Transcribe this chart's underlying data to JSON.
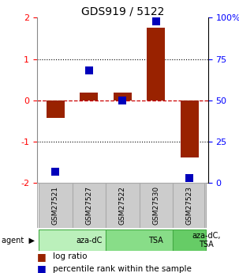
{
  "title": "GDS919 / 5122",
  "samples": [
    "GSM27521",
    "GSM27527",
    "GSM27522",
    "GSM27530",
    "GSM27523"
  ],
  "log_ratios": [
    -0.42,
    0.18,
    0.18,
    1.75,
    -1.38
  ],
  "percentile_ranks": [
    7,
    68,
    50,
    98,
    3
  ],
  "agents": [
    {
      "label": "aza-dC",
      "start": 0,
      "end": 2,
      "color": "#bbf0bb"
    },
    {
      "label": "TSA",
      "start": 2,
      "end": 4,
      "color": "#88dd88"
    },
    {
      "label": "aza-dC,\nTSA",
      "start": 4,
      "end": 5,
      "color": "#66cc66"
    }
  ],
  "ylim_left": [
    -2,
    2
  ],
  "ylim_right": [
    0,
    100
  ],
  "left_ticks": [
    -2,
    -1,
    0,
    1,
    2
  ],
  "right_ticks": [
    0,
    25,
    50,
    75,
    100
  ],
  "right_tick_labels": [
    "0",
    "25",
    "50",
    "75",
    "100%"
  ],
  "left_tick_labels": [
    "-2",
    "-1",
    "0",
    "1",
    "2"
  ],
  "bar_color": "#992200",
  "dot_color": "#0000bb",
  "bar_width": 0.55,
  "dot_size": 50,
  "zero_line_color": "#cc0000",
  "grid_line_color": "#000000",
  "background_color": "#ffffff",
  "sample_box_color": "#cccccc",
  "sample_box_edge": "#888888",
  "agent_colors": [
    "#bbf0bb",
    "#88dd88",
    "#66cc66"
  ],
  "agent_edge": "#44aa44"
}
